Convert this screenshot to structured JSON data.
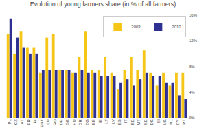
{
  "chart_data": {
    "type": "bar",
    "title": "Evolution of young farmers share (in % of all farmers)",
    "categories": [
      "PL",
      "CZ",
      "AT",
      "FR",
      "FI",
      "EU7",
      "LU",
      "RO",
      "DE",
      "SK",
      "HU",
      "GR",
      "BG",
      "EE",
      "IE",
      "LT",
      "LV",
      "ES",
      "IT",
      "BE",
      "MT",
      "SE",
      "DK",
      "SI",
      "UK",
      "NL",
      "CY",
      "PT"
    ],
    "series": [
      {
        "name": "2003",
        "color": "#F5C518",
        "values": [
          13.0,
          10.0,
          13.5,
          11.0,
          11.0,
          7.0,
          12.5,
          13.0,
          7.5,
          7.5,
          7.0,
          9.5,
          13.5,
          7.5,
          7.5,
          9.5,
          7.0,
          4.5,
          7.5,
          9.5,
          7.5,
          10.5,
          7.0,
          5.0,
          7.0,
          5.0,
          7.0,
          7.0
        ]
      },
      {
        "name": "2010",
        "color": "#2E3192",
        "values": [
          15.5,
          12.5,
          11.0,
          10.0,
          10.0,
          7.5,
          7.5,
          7.5,
          7.5,
          7.5,
          7.0,
          7.5,
          7.0,
          7.0,
          6.5,
          6.5,
          6.5,
          5.5,
          6.0,
          5.0,
          6.0,
          7.0,
          6.5,
          6.5,
          5.5,
          5.5,
          3.5,
          3.0
        ]
      }
    ],
    "ylim": [
      0,
      16
    ],
    "yticks": [
      {
        "value": 0,
        "label": "0%"
      },
      {
        "value": 4,
        "label": "4%"
      },
      {
        "value": 8,
        "label": "8%"
      },
      {
        "value": 12,
        "label": "12%"
      },
      {
        "value": 16,
        "label": "16%"
      }
    ],
    "grid": false,
    "legend": "upper right"
  }
}
